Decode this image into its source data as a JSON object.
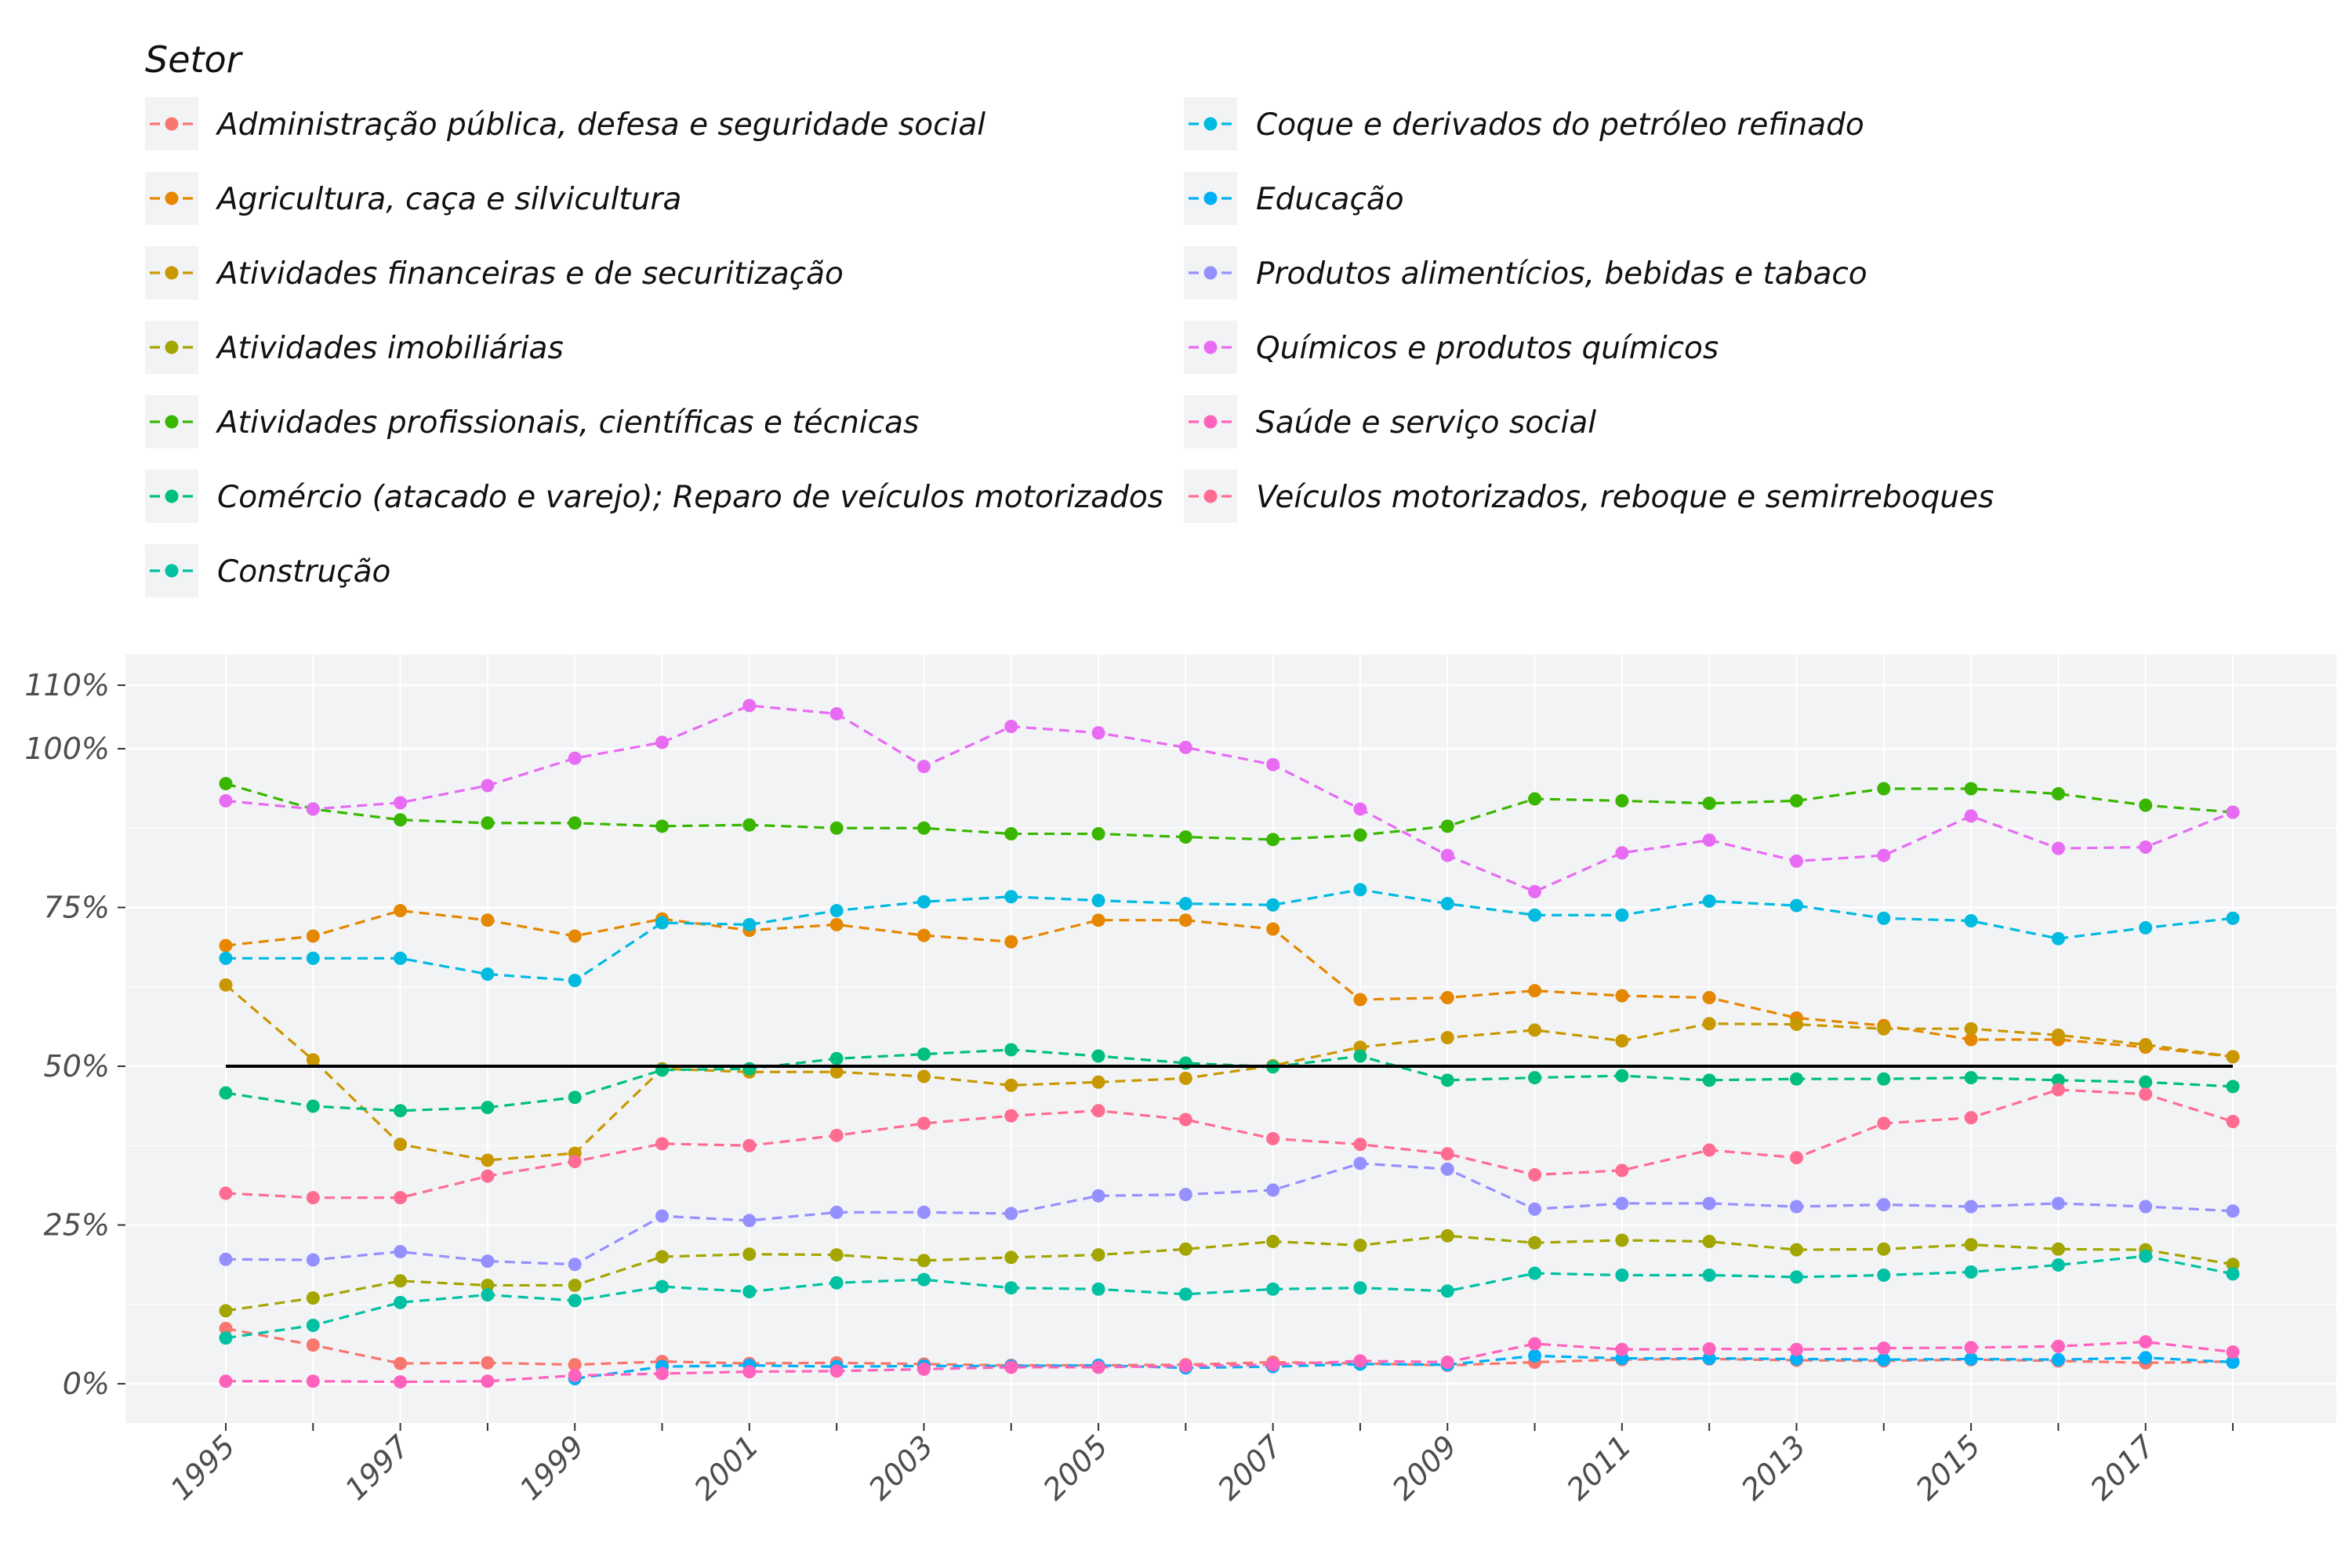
{
  "chart_data": {
    "type": "line",
    "title": "",
    "xlabel": "",
    "ylabel": "",
    "x": [
      1995,
      1996,
      1997,
      1998,
      1999,
      2000,
      2001,
      2002,
      2003,
      2004,
      2005,
      2006,
      2007,
      2008,
      2009,
      2010,
      2011,
      2012,
      2013,
      2014,
      2015,
      2016,
      2017,
      2018
    ],
    "x_ticks": [
      "1995",
      "1997",
      "1999",
      "2001",
      "2003",
      "2005",
      "2007",
      "2009",
      "2011",
      "2013",
      "2015",
      "2017"
    ],
    "ylim": [
      -5,
      113
    ],
    "y_ticks": [
      0,
      25,
      50,
      75,
      100,
      110
    ],
    "y_tick_labels": [
      "0%",
      "25%",
      "50%",
      "75%",
      "100%",
      "110%"
    ],
    "reference_line": 50,
    "legend_title": "Setor",
    "legend_position": "top",
    "grid": true,
    "series": [
      {
        "name": "Administração pública, defesa e seguridade social",
        "color": "#F8766D",
        "values": [
          8.7,
          6.1,
          3.2,
          3.3,
          3.0,
          3.5,
          3.2,
          3.3,
          3.1,
          2.9,
          2.9,
          3.0,
          3.4,
          3.2,
          2.9,
          3.4,
          3.8,
          3.9,
          3.7,
          3.6,
          3.8,
          3.6,
          3.3,
          3.5
        ]
      },
      {
        "name": "Agricultura, caça e silvicultura",
        "color": "#E58700",
        "values": [
          69.0,
          70.5,
          74.5,
          73.0,
          70.5,
          73.2,
          71.4,
          72.3,
          70.6,
          69.6,
          73.0,
          73.0,
          71.6,
          60.5,
          60.8,
          61.9,
          61.1,
          60.8,
          57.6,
          56.4,
          54.2,
          54.2,
          53.0,
          51.5
        ]
      },
      {
        "name": "Atividades financeiras e de securitização",
        "color": "#C99800",
        "values": [
          62.8,
          51.0,
          37.7,
          35.2,
          36.3,
          49.6,
          49.1,
          49.1,
          48.4,
          47.0,
          47.5,
          48.1,
          50.1,
          53.0,
          54.5,
          55.7,
          54.0,
          56.7,
          56.6,
          55.9,
          55.9,
          54.9,
          53.4,
          51.5
        ]
      },
      {
        "name": "Atividades imobiliárias",
        "color": "#A3A500",
        "values": [
          11.5,
          13.5,
          16.2,
          15.5,
          15.5,
          20.0,
          20.4,
          20.3,
          19.4,
          19.9,
          20.3,
          21.2,
          22.4,
          21.8,
          23.3,
          22.2,
          22.6,
          22.4,
          21.1,
          21.2,
          21.9,
          21.2,
          21.1,
          18.8
        ]
      },
      {
        "name": "Atividades profissionais, científicas e técnicas",
        "color": "#39B600",
        "values": [
          94.5,
          90.5,
          88.8,
          88.3,
          88.3,
          87.8,
          88.0,
          87.5,
          87.5,
          86.6,
          86.6,
          86.1,
          85.7,
          86.4,
          87.8,
          92.1,
          91.8,
          91.4,
          91.8,
          93.7,
          93.7,
          92.9,
          91.1,
          90.0
        ]
      },
      {
        "name": "Comércio (atacado e varejo); Reparo de veículos motorizados",
        "color": "#00BF7D",
        "values": [
          45.8,
          43.7,
          43.0,
          43.5,
          45.1,
          49.4,
          49.6,
          51.2,
          51.9,
          52.6,
          51.6,
          50.5,
          49.9,
          51.6,
          47.8,
          48.2,
          48.5,
          47.8,
          48.0,
          48.0,
          48.2,
          47.8,
          47.5,
          46.8
        ]
      },
      {
        "name": "Construção",
        "color": "#00C1A3",
        "values": [
          7.2,
          9.2,
          12.8,
          14.0,
          13.1,
          15.3,
          14.5,
          15.9,
          16.4,
          15.1,
          14.9,
          14.1,
          14.9,
          15.1,
          14.6,
          17.4,
          17.1,
          17.1,
          16.8,
          17.1,
          17.6,
          18.7,
          20.1,
          17.3
        ]
      },
      {
        "name": "Coque e derivados do petróleo refinado",
        "color": "#00BAE0",
        "values": [
          67.0,
          67.0,
          67.0,
          64.5,
          63.5,
          72.6,
          72.3,
          74.5,
          75.9,
          76.7,
          76.1,
          75.6,
          75.4,
          77.8,
          75.6,
          73.8,
          73.8,
          76.0,
          75.3,
          73.3,
          72.9,
          70.1,
          71.8,
          73.3
        ]
      },
      {
        "name": "Educação",
        "color": "#00B0F6",
        "values": [
          null,
          null,
          null,
          null,
          0.8,
          2.7,
          2.9,
          2.7,
          2.8,
          2.8,
          2.9,
          2.5,
          2.7,
          3.1,
          3.0,
          4.4,
          4.0,
          4.0,
          3.9,
          3.8,
          3.9,
          3.8,
          4.1,
          3.4
        ]
      },
      {
        "name": "Produtos alimentícios, bebidas e tabaco",
        "color": "#9590FF",
        "values": [
          19.6,
          19.5,
          20.8,
          19.3,
          18.8,
          26.4,
          25.7,
          27.0,
          27.0,
          26.8,
          29.6,
          29.8,
          30.5,
          34.7,
          33.8,
          27.5,
          28.4,
          28.4,
          27.9,
          28.2,
          27.9,
          28.4,
          27.9,
          27.2
        ]
      },
      {
        "name": "Químicos e produtos químicos",
        "color": "#E76BF3",
        "values": [
          91.8,
          90.5,
          91.5,
          94.2,
          98.5,
          101.0,
          106.8,
          105.5,
          97.2,
          103.5,
          102.5,
          100.2,
          97.5,
          90.5,
          83.2,
          77.5,
          83.6,
          85.6,
          82.3,
          83.2,
          89.4,
          84.3,
          84.5,
          90.0
        ]
      },
      {
        "name": "Saúde e serviço social",
        "color": "#FF62BC",
        "values": [
          0.4,
          0.4,
          0.3,
          0.4,
          1.3,
          1.6,
          1.9,
          2.0,
          2.3,
          2.6,
          2.6,
          2.8,
          3.0,
          3.6,
          3.4,
          6.3,
          5.4,
          5.5,
          5.4,
          5.6,
          5.7,
          5.9,
          6.6,
          5.0
        ]
      },
      {
        "name": "Veículos motorizados, reboque e semirreboques",
        "color": "#FF6C91",
        "values": [
          30.0,
          29.3,
          29.3,
          32.7,
          35.0,
          37.8,
          37.5,
          39.1,
          41.0,
          42.2,
          43.0,
          41.6,
          38.6,
          37.7,
          36.2,
          32.9,
          33.6,
          36.8,
          35.6,
          41.0,
          41.9,
          46.3,
          45.6,
          41.3
        ]
      }
    ]
  }
}
